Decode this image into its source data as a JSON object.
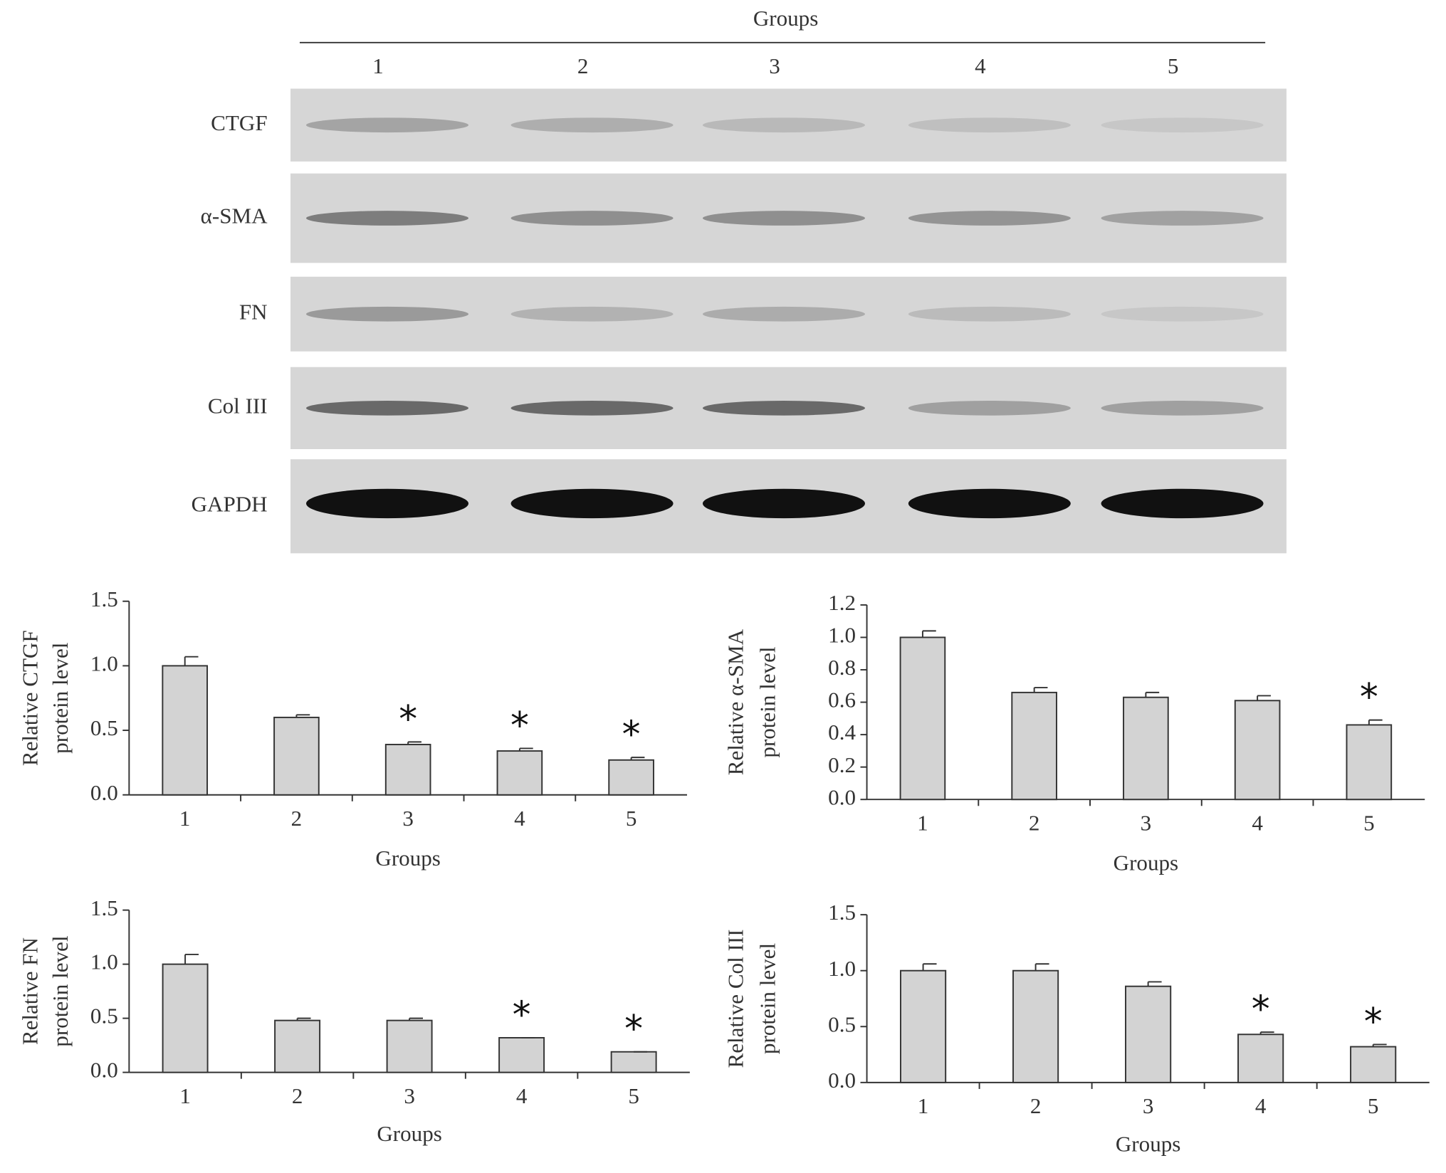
{
  "blot": {
    "title": "Groups",
    "lanes": [
      "1",
      "2",
      "3",
      "4",
      "5"
    ],
    "proteins": [
      "CTGF",
      "α-SMA",
      "FN",
      "Col III",
      "GAPDH"
    ]
  },
  "chart_data": [
    {
      "type": "bar",
      "ylabel": [
        "Relative CTGF",
        "protein level"
      ],
      "xlabel": "Groups",
      "categories": [
        "1",
        "2",
        "3",
        "4",
        "5"
      ],
      "values": [
        1.0,
        0.6,
        0.39,
        0.34,
        0.27
      ],
      "errors": [
        0.07,
        0.02,
        0.02,
        0.02,
        0.02
      ],
      "annotations": [
        null,
        null,
        "*",
        "*",
        "*"
      ],
      "color": "#d3d3d3",
      "ylim": [
        0,
        1.5
      ],
      "yticks": [
        {
          "value": 0,
          "label": "0.0"
        },
        0.5,
        {
          "value": 1,
          "label": "1.0"
        },
        1.5
      ]
    },
    {
      "type": "bar",
      "ylabel": [
        "Relative α-SMA",
        "protein level"
      ],
      "xlabel": "Groups",
      "categories": [
        "1",
        "2",
        "3",
        "4",
        "5"
      ],
      "values": [
        1.0,
        0.66,
        0.63,
        0.61,
        0.46
      ],
      "errors": [
        0.04,
        0.03,
        0.03,
        0.03,
        0.03
      ],
      "annotations": [
        null,
        null,
        null,
        null,
        "*"
      ],
      "color": "#d3d3d3",
      "ylim": [
        0,
        1.2
      ],
      "yticks": [
        {
          "value": 0,
          "label": "0.0"
        },
        0.2,
        0.4,
        0.6,
        0.8,
        {
          "value": 1,
          "label": "1.0"
        },
        1.2
      ]
    },
    {
      "type": "bar",
      "ylabel": [
        "Relative FN",
        "protein level"
      ],
      "xlabel": "Groups",
      "categories": [
        "1",
        "2",
        "3",
        "4",
        "5"
      ],
      "values": [
        1.0,
        0.48,
        0.48,
        0.32,
        0.19
      ],
      "errors": [
        0.09,
        0.02,
        0.02,
        0,
        0
      ],
      "annotations": [
        null,
        null,
        null,
        "*",
        "*"
      ],
      "color": "#d3d3d3",
      "ylim": [
        0,
        1.5
      ],
      "yticks": [
        {
          "value": 0,
          "label": "0.0"
        },
        0.5,
        {
          "value": 1,
          "label": "1.0"
        },
        1.5
      ]
    },
    {
      "type": "bar",
      "ylabel": [
        "Relative Col III",
        "protein level"
      ],
      "xlabel": "Groups",
      "categories": [
        "1",
        "2",
        "3",
        "4",
        "5"
      ],
      "values": [
        1.0,
        1.0,
        0.86,
        0.43,
        0.32
      ],
      "errors": [
        0.06,
        0.06,
        0.04,
        0.02,
        0.02
      ],
      "annotations": [
        null,
        null,
        null,
        "*",
        "*"
      ],
      "color": "#d3d3d3",
      "ylim": [
        0,
        1.5
      ],
      "yticks": [
        {
          "value": 0,
          "label": "0.0"
        },
        0.5,
        {
          "value": 1,
          "label": "1.0"
        },
        1.5
      ]
    }
  ]
}
